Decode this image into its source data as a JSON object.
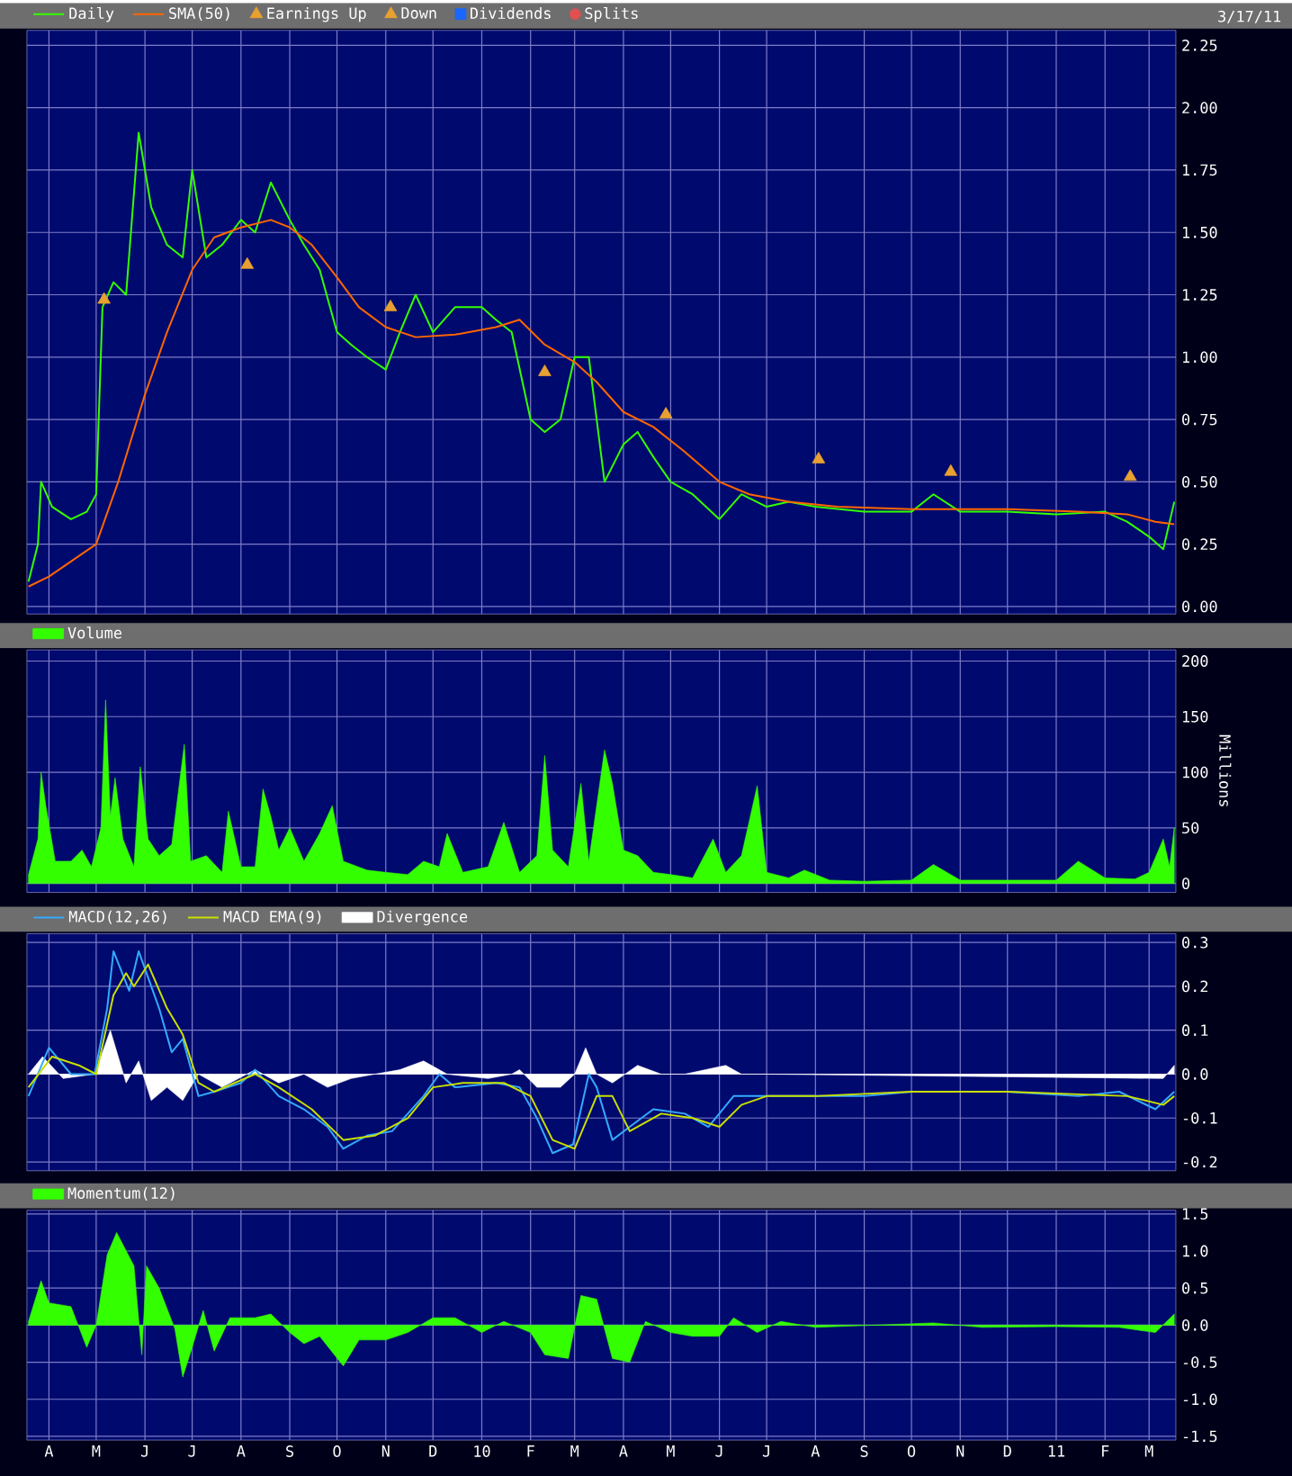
{
  "chart_data": [
    {
      "type": "line",
      "annotations": [
        "3/17/11"
      ],
      "legend": "top left",
      "grid": true,
      "tick_labels": "y",
      "xlim": [
        "2009-03-18",
        "2011-03-18"
      ],
      "xticks": [
        {
          "value": "2009-04-01",
          "label": null
        },
        {
          "value": "2009-05-01",
          "label": null
        },
        {
          "value": "2009-06-01",
          "label": null
        },
        {
          "value": "2009-07-01",
          "label": null
        },
        {
          "value": "2009-08-01",
          "label": null
        },
        {
          "value": "2009-09-01",
          "label": null
        },
        {
          "value": "2009-10-01",
          "label": null
        },
        {
          "value": "2009-11-01",
          "label": null
        },
        {
          "value": "2009-12-01",
          "label": null
        },
        {
          "value": "2010-01-01",
          "label": null
        },
        {
          "value": "2010-02-01",
          "label": null
        },
        {
          "value": "2010-03-01",
          "label": null
        },
        {
          "value": "2010-04-01",
          "label": null
        },
        {
          "value": "2010-05-01",
          "label": null
        },
        {
          "value": "2010-06-01",
          "label": null
        },
        {
          "value": "2010-07-01",
          "label": null
        },
        {
          "value": "2010-08-01",
          "label": null
        },
        {
          "value": "2010-09-01",
          "label": null
        },
        {
          "value": "2010-10-01",
          "label": null
        },
        {
          "value": "2010-11-01",
          "label": null
        },
        {
          "value": "2010-12-01",
          "label": null
        },
        {
          "value": "2011-01-01",
          "label": null
        },
        {
          "value": "2011-02-01",
          "label": null
        },
        {
          "value": "2011-03-01",
          "label": null
        }
      ],
      "ylim": [
        -0.03,
        2.31
      ],
      "yticks": [
        {
          "value": 0,
          "label": "0.00"
        },
        0.25,
        {
          "value": 0.5,
          "label": "0.50"
        },
        0.75,
        {
          "value": 1,
          "label": "1.00"
        },
        1.25,
        {
          "value": 1.5,
          "label": "1.50"
        },
        1.75,
        {
          "value": 2,
          "label": "2.00"
        },
        2.25
      ],
      "series": [
        {
          "name": "Daily",
          "color": "#33ff00",
          "x": [
            "2009-03-19",
            "2009-03-25",
            "2009-03-27",
            "2009-04-03",
            "2009-04-15",
            "2009-04-25",
            "2009-05-01",
            "2009-05-05",
            "2009-05-12",
            "2009-05-20",
            "2009-05-28",
            "2009-06-05",
            "2009-06-15",
            "2009-06-25",
            "2009-07-01",
            "2009-07-10",
            "2009-07-20",
            "2009-08-01",
            "2009-08-10",
            "2009-08-20",
            "2009-09-01",
            "2009-09-10",
            "2009-09-20",
            "2009-10-01",
            "2009-10-10",
            "2009-10-20",
            "2009-11-01",
            "2009-11-10",
            "2009-11-20",
            "2009-12-01",
            "2009-12-15",
            "2010-01-01",
            "2010-01-10",
            "2010-01-20",
            "2010-02-01",
            "2010-02-10",
            "2010-02-20",
            "2010-03-01",
            "2010-03-10",
            "2010-03-20",
            "2010-04-01",
            "2010-04-10",
            "2010-04-20",
            "2010-05-01",
            "2010-05-15",
            "2010-06-01",
            "2010-06-15",
            "2010-07-01",
            "2010-07-15",
            "2010-08-01",
            "2010-09-01",
            "2010-10-01",
            "2010-10-15",
            "2010-11-01",
            "2010-12-01",
            "2011-01-01",
            "2011-02-01",
            "2011-02-15",
            "2011-03-01",
            "2011-03-10",
            "2011-03-17"
          ],
          "values": [
            0.1,
            0.25,
            0.5,
            0.4,
            0.35,
            0.38,
            0.45,
            1.2,
            1.3,
            1.25,
            1.9,
            1.6,
            1.45,
            1.4,
            1.75,
            1.4,
            1.45,
            1.55,
            1.5,
            1.7,
            1.55,
            1.45,
            1.35,
            1.1,
            1.05,
            1.0,
            0.95,
            1.1,
            1.25,
            1.1,
            1.2,
            1.2,
            1.15,
            1.1,
            0.75,
            0.7,
            0.75,
            1.0,
            1.0,
            0.5,
            0.65,
            0.7,
            0.6,
            0.5,
            0.45,
            0.35,
            0.45,
            0.4,
            0.42,
            0.4,
            0.38,
            0.38,
            0.45,
            0.38,
            0.38,
            0.37,
            0.38,
            0.34,
            0.28,
            0.23,
            0.42
          ]
        },
        {
          "name": "SMA(50)",
          "color": "#ff6600",
          "x": [
            "2009-03-19",
            "2009-04-01",
            "2009-05-01",
            "2009-05-15",
            "2009-06-01",
            "2009-06-15",
            "2009-07-01",
            "2009-07-15",
            "2009-08-01",
            "2009-08-20",
            "2009-09-01",
            "2009-09-15",
            "2009-10-01",
            "2009-10-15",
            "2009-11-01",
            "2009-11-20",
            "2009-12-15",
            "2010-01-10",
            "2010-01-25",
            "2010-02-10",
            "2010-03-01",
            "2010-03-15",
            "2010-04-01",
            "2010-04-20",
            "2010-05-10",
            "2010-06-01",
            "2010-06-20",
            "2010-07-15",
            "2010-08-15",
            "2010-10-01",
            "2010-12-01",
            "2011-01-15",
            "2011-02-15",
            "2011-03-05",
            "2011-03-17"
          ],
          "values": [
            0.08,
            0.12,
            0.25,
            0.5,
            0.85,
            1.1,
            1.35,
            1.48,
            1.52,
            1.55,
            1.52,
            1.45,
            1.32,
            1.2,
            1.12,
            1.08,
            1.09,
            1.12,
            1.15,
            1.05,
            0.98,
            0.9,
            0.78,
            0.72,
            0.62,
            0.5,
            0.45,
            0.42,
            0.4,
            0.39,
            0.39,
            0.38,
            0.37,
            0.34,
            0.33
          ]
        },
        {
          "name": "Earnings Up",
          "type": "scatter",
          "marker": "triangle",
          "color": "#e8a030",
          "x": [
            "2009-05-06",
            "2009-08-05",
            "2009-11-04",
            "2010-02-10",
            "2010-10-26",
            "2011-02-17"
          ],
          "values": [
            1.23,
            1.37,
            1.2,
            0.94,
            0.54,
            0.52
          ]
        },
        {
          "name": "Down",
          "type": "scatter",
          "marker": "triangle",
          "color": "#e8a030",
          "x": [
            "2010-04-28",
            "2010-08-03"
          ],
          "values": [
            0.77,
            0.59
          ]
        },
        {
          "name": "Dividends",
          "type": "scatter",
          "marker": "square",
          "color": "#1a66ff"
        },
        {
          "name": "Splits",
          "type": "scatter",
          "marker": "circle",
          "color": "#e05050"
        }
      ]
    },
    {
      "type": "area",
      "ylabel": "Millions",
      "legend": "top left",
      "grid": true,
      "tick_labels": "y",
      "xlim": [
        "2009-03-18",
        "2011-03-18"
      ],
      "xticks": [
        {
          "value": "2009-04-01",
          "label": null
        },
        {
          "value": "2009-05-01",
          "label": null
        },
        {
          "value": "2009-06-01",
          "label": null
        },
        {
          "value": "2009-07-01",
          "label": null
        },
        {
          "value": "2009-08-01",
          "label": null
        },
        {
          "value": "2009-09-01",
          "label": null
        },
        {
          "value": "2009-10-01",
          "label": null
        },
        {
          "value": "2009-11-01",
          "label": null
        },
        {
          "value": "2009-12-01",
          "label": null
        },
        {
          "value": "2010-01-01",
          "label": null
        },
        {
          "value": "2010-02-01",
          "label": null
        },
        {
          "value": "2010-03-01",
          "label": null
        },
        {
          "value": "2010-04-01",
          "label": null
        },
        {
          "value": "2010-05-01",
          "label": null
        },
        {
          "value": "2010-06-01",
          "label": null
        },
        {
          "value": "2010-07-01",
          "label": null
        },
        {
          "value": "2010-08-01",
          "label": null
        },
        {
          "value": "2010-09-01",
          "label": null
        },
        {
          "value": "2010-10-01",
          "label": null
        },
        {
          "value": "2010-11-01",
          "label": null
        },
        {
          "value": "2010-12-01",
          "label": null
        },
        {
          "value": "2011-01-01",
          "label": null
        },
        {
          "value": "2011-02-01",
          "label": null
        },
        {
          "value": "2011-03-01",
          "label": null
        }
      ],
      "ylim": [
        -8,
        210
      ],
      "yticks": [
        0,
        50,
        100,
        150,
        200
      ],
      "series": [
        {
          "name": "Volume",
          "color": "#33ff00",
          "x": [
            "2009-03-19",
            "2009-03-25",
            "2009-03-27",
            "2009-03-30",
            "2009-04-05",
            "2009-04-15",
            "2009-04-22",
            "2009-04-28",
            "2009-05-04",
            "2009-05-07",
            "2009-05-10",
            "2009-05-13",
            "2009-05-18",
            "2009-05-25",
            "2009-05-29",
            "2009-06-03",
            "2009-06-10",
            "2009-06-18",
            "2009-06-26",
            "2009-06-30",
            "2009-07-10",
            "2009-07-20",
            "2009-07-24",
            "2009-08-01",
            "2009-08-10",
            "2009-08-15",
            "2009-08-20",
            "2009-08-25",
            "2009-09-01",
            "2009-09-10",
            "2009-09-20",
            "2009-09-28",
            "2009-10-05",
            "2009-10-20",
            "2009-11-01",
            "2009-11-15",
            "2009-11-25",
            "2009-12-05",
            "2009-12-10",
            "2009-12-20",
            "2010-01-05",
            "2010-01-15",
            "2010-01-25",
            "2010-02-05",
            "2010-02-10",
            "2010-02-15",
            "2010-02-25",
            "2010-03-05",
            "2010-03-10",
            "2010-03-20",
            "2010-03-25",
            "2010-04-01",
            "2010-04-10",
            "2010-04-20",
            "2010-05-01",
            "2010-05-15",
            "2010-05-28",
            "2010-06-05",
            "2010-06-15",
            "2010-06-25",
            "2010-07-01",
            "2010-07-15",
            "2010-07-25",
            "2010-08-10",
            "2010-09-01",
            "2010-10-01",
            "2010-10-15",
            "2010-11-01",
            "2010-12-01",
            "2011-01-01",
            "2011-01-15",
            "2011-02-01",
            "2011-02-20",
            "2011-03-01",
            "2011-03-10",
            "2011-03-14",
            "2011-03-17"
          ],
          "values": [
            8,
            40,
            100,
            70,
            20,
            20,
            30,
            15,
            50,
            165,
            60,
            95,
            40,
            15,
            105,
            40,
            25,
            35,
            125,
            20,
            25,
            10,
            65,
            15,
            15,
            85,
            60,
            30,
            50,
            20,
            45,
            70,
            20,
            12,
            10,
            8,
            20,
            15,
            45,
            10,
            15,
            55,
            10,
            25,
            115,
            30,
            15,
            90,
            20,
            120,
            90,
            30,
            25,
            10,
            8,
            5,
            40,
            10,
            25,
            88,
            10,
            5,
            12,
            3,
            2,
            3,
            17,
            3,
            3,
            3,
            20,
            5,
            4,
            10,
            40,
            15,
            50
          ]
        }
      ]
    },
    {
      "type": "line",
      "legend": "top left",
      "grid": true,
      "tick_labels": "y",
      "xlim": [
        "2009-03-18",
        "2011-03-18"
      ],
      "xticks": [
        {
          "value": "2009-04-01",
          "label": null
        },
        {
          "value": "2009-05-01",
          "label": null
        },
        {
          "value": "2009-06-01",
          "label": null
        },
        {
          "value": "2009-07-01",
          "label": null
        },
        {
          "value": "2009-08-01",
          "label": null
        },
        {
          "value": "2009-09-01",
          "label": null
        },
        {
          "value": "2009-10-01",
          "label": null
        },
        {
          "value": "2009-11-01",
          "label": null
        },
        {
          "value": "2009-12-01",
          "label": null
        },
        {
          "value": "2010-01-01",
          "label": null
        },
        {
          "value": "2010-02-01",
          "label": null
        },
        {
          "value": "2010-03-01",
          "label": null
        },
        {
          "value": "2010-04-01",
          "label": null
        },
        {
          "value": "2010-05-01",
          "label": null
        },
        {
          "value": "2010-06-01",
          "label": null
        },
        {
          "value": "2010-07-01",
          "label": null
        },
        {
          "value": "2010-08-01",
          "label": null
        },
        {
          "value": "2010-09-01",
          "label": null
        },
        {
          "value": "2010-10-01",
          "label": null
        },
        {
          "value": "2010-11-01",
          "label": null
        },
        {
          "value": "2010-12-01",
          "label": null
        },
        {
          "value": "2011-01-01",
          "label": null
        },
        {
          "value": "2011-02-01",
          "label": null
        },
        {
          "value": "2011-03-01",
          "label": null
        }
      ],
      "ylim": [
        -0.22,
        0.32
      ],
      "yticks": [
        -0.2,
        -0.1,
        {
          "value": 0,
          "label": "0.0"
        },
        0.1,
        0.2,
        0.3
      ],
      "series": [
        {
          "name": "MACD(12,26)",
          "color": "#33aaff",
          "x": [
            "2009-03-19",
            "2009-04-01",
            "2009-04-15",
            "2009-04-30",
            "2009-05-08",
            "2009-05-12",
            "2009-05-22",
            "2009-05-28",
            "2009-06-10",
            "2009-06-18",
            "2009-06-25",
            "2009-07-05",
            "2009-07-15",
            "2009-08-01",
            "2009-08-10",
            "2009-08-25",
            "2009-09-10",
            "2009-09-25",
            "2009-10-05",
            "2009-10-20",
            "2009-11-05",
            "2009-11-25",
            "2009-12-05",
            "2009-12-15",
            "2010-01-10",
            "2010-01-25",
            "2010-02-05",
            "2010-02-15",
            "2010-02-28",
            "2010-03-10",
            "2010-03-15",
            "2010-03-25",
            "2010-04-05",
            "2010-04-20",
            "2010-05-10",
            "2010-05-25",
            "2010-06-10",
            "2010-07-01",
            "2010-08-01",
            "2010-09-01",
            "2010-10-01",
            "2010-11-01",
            "2010-12-01",
            "2011-01-15",
            "2011-02-10",
            "2011-03-05",
            "2011-03-17"
          ],
          "values": [
            -0.05,
            0.06,
            0.0,
            0.0,
            0.15,
            0.28,
            0.19,
            0.28,
            0.15,
            0.05,
            0.08,
            -0.05,
            -0.04,
            -0.02,
            0.01,
            -0.05,
            -0.08,
            -0.12,
            -0.17,
            -0.14,
            -0.13,
            -0.05,
            0.0,
            -0.03,
            -0.02,
            -0.03,
            -0.1,
            -0.18,
            -0.16,
            0.0,
            -0.03,
            -0.15,
            -0.12,
            -0.08,
            -0.09,
            -0.12,
            -0.05,
            -0.05,
            -0.05,
            -0.05,
            -0.04,
            -0.04,
            -0.04,
            -0.05,
            -0.04,
            -0.08,
            -0.04
          ]
        },
        {
          "name": "MACD EMA(9)",
          "color": "#c8e000",
          "x": [
            "2009-03-19",
            "2009-04-03",
            "2009-04-20",
            "2009-05-01",
            "2009-05-12",
            "2009-05-20",
            "2009-05-25",
            "2009-06-03",
            "2009-06-15",
            "2009-06-25",
            "2009-07-05",
            "2009-07-15",
            "2009-08-10",
            "2009-08-25",
            "2009-09-15",
            "2009-10-05",
            "2009-10-25",
            "2009-11-15",
            "2009-12-01",
            "2009-12-20",
            "2010-01-15",
            "2010-02-01",
            "2010-02-15",
            "2010-03-01",
            "2010-03-15",
            "2010-03-25",
            "2010-04-05",
            "2010-04-25",
            "2010-05-15",
            "2010-06-01",
            "2010-06-15",
            "2010-07-01",
            "2010-08-01",
            "2010-10-01",
            "2010-12-01",
            "2011-02-15",
            "2011-03-10",
            "2011-03-17"
          ],
          "values": [
            -0.03,
            0.04,
            0.02,
            0.0,
            0.18,
            0.23,
            0.2,
            0.25,
            0.15,
            0.09,
            -0.02,
            -0.04,
            0.0,
            -0.03,
            -0.08,
            -0.15,
            -0.14,
            -0.1,
            -0.03,
            -0.02,
            -0.02,
            -0.05,
            -0.15,
            -0.17,
            -0.05,
            -0.05,
            -0.13,
            -0.09,
            -0.1,
            -0.12,
            -0.07,
            -0.05,
            -0.05,
            -0.04,
            -0.04,
            -0.05,
            -0.07,
            -0.05
          ]
        },
        {
          "name": "Divergence",
          "type": "area",
          "color": "#ffffff",
          "x": [
            "2009-03-19",
            "2009-03-28",
            "2009-04-10",
            "2009-04-30",
            "2009-05-10",
            "2009-05-20",
            "2009-05-28",
            "2009-06-05",
            "2009-06-15",
            "2009-06-25",
            "2009-07-05",
            "2009-07-20",
            "2009-08-10",
            "2009-08-25",
            "2009-09-10",
            "2009-09-25",
            "2009-10-10",
            "2009-10-25",
            "2009-11-10",
            "2009-11-25",
            "2009-12-10",
            "2010-01-05",
            "2010-01-20",
            "2010-01-25",
            "2010-02-05",
            "2010-02-20",
            "2010-03-01",
            "2010-03-08",
            "2010-03-15",
            "2010-03-25",
            "2010-04-10",
            "2010-04-25",
            "2010-05-10",
            "2010-06-05",
            "2010-06-15",
            "2010-07-01",
            "2011-03-10",
            "2011-03-17"
          ],
          "values": [
            0.0,
            0.04,
            -0.01,
            0.0,
            0.1,
            -0.02,
            0.03,
            -0.06,
            -0.03,
            -0.06,
            0.0,
            -0.03,
            0.01,
            -0.02,
            0.0,
            -0.03,
            -0.01,
            0.0,
            0.01,
            0.03,
            0.0,
            -0.01,
            0.0,
            0.01,
            -0.03,
            -0.03,
            0.0,
            0.06,
            0.0,
            -0.02,
            0.02,
            0.0,
            0.0,
            0.02,
            0.0,
            0.0,
            -0.01,
            0.02
          ]
        }
      ]
    },
    {
      "type": "area",
      "legend": "top left",
      "grid": true,
      "xlim": [
        "2009-03-18",
        "2011-03-18"
      ],
      "xticks": [
        {
          "value": "2009-04-01",
          "label": "A"
        },
        {
          "value": "2009-05-01",
          "label": "M"
        },
        {
          "value": "2009-06-01",
          "label": "J"
        },
        {
          "value": "2009-07-01",
          "label": "J"
        },
        {
          "value": "2009-08-01",
          "label": "A"
        },
        {
          "value": "2009-09-01",
          "label": "S"
        },
        {
          "value": "2009-10-01",
          "label": "O"
        },
        {
          "value": "2009-11-01",
          "label": "N"
        },
        {
          "value": "2009-12-01",
          "label": "D"
        },
        {
          "value": "2010-01-01",
          "label": "10"
        },
        {
          "value": "2010-02-01",
          "label": "F"
        },
        {
          "value": "2010-03-01",
          "label": "M"
        },
        {
          "value": "2010-04-01",
          "label": "A"
        },
        {
          "value": "2010-05-01",
          "label": "M"
        },
        {
          "value": "2010-06-01",
          "label": "J"
        },
        {
          "value": "2010-07-01",
          "label": "J"
        },
        {
          "value": "2010-08-01",
          "label": "A"
        },
        {
          "value": "2010-09-01",
          "label": "S"
        },
        {
          "value": "2010-10-01",
          "label": "O"
        },
        {
          "value": "2010-11-01",
          "label": "N"
        },
        {
          "value": "2010-12-01",
          "label": "D"
        },
        {
          "value": "2011-01-01",
          "label": "11"
        },
        {
          "value": "2011-02-01",
          "label": "F"
        },
        {
          "value": "2011-03-01",
          "label": "M"
        }
      ],
      "ylim": [
        -1.55,
        1.55
      ],
      "yticks": [
        -1.5,
        {
          "value": -1,
          "label": "-1.0"
        },
        -0.5,
        {
          "value": 0,
          "label": "0.0"
        },
        0.5,
        {
          "value": 1,
          "label": "1.0"
        },
        1.5
      ],
      "series": [
        {
          "name": "Momentum(12)",
          "color": "#33ff00",
          "x": [
            "2009-03-19",
            "2009-03-27",
            "2009-04-01",
            "2009-04-15",
            "2009-04-25",
            "2009-05-01",
            "2009-05-08",
            "2009-05-14",
            "2009-05-25",
            "2009-05-30",
            "2009-06-02",
            "2009-06-10",
            "2009-06-20",
            "2009-06-25",
            "2009-07-01",
            "2009-07-08",
            "2009-07-15",
            "2009-07-25",
            "2009-08-10",
            "2009-08-20",
            "2009-09-01",
            "2009-09-10",
            "2009-09-20",
            "2009-10-05",
            "2009-10-15",
            "2009-11-01",
            "2009-11-15",
            "2009-12-01",
            "2009-12-15",
            "2010-01-01",
            "2010-01-15",
            "2010-02-01",
            "2010-02-10",
            "2010-02-25",
            "2010-03-05",
            "2010-03-15",
            "2010-03-25",
            "2010-04-05",
            "2010-04-15",
            "2010-05-01",
            "2010-05-15",
            "2010-06-01",
            "2010-06-10",
            "2010-06-25",
            "2010-07-10",
            "2010-08-01",
            "2010-10-15",
            "2010-11-15",
            "2011-01-01",
            "2011-02-10",
            "2011-03-05",
            "2011-03-17"
          ],
          "values": [
            0.05,
            0.6,
            0.3,
            0.25,
            -0.3,
            0.0,
            0.95,
            1.25,
            0.8,
            -0.4,
            0.8,
            0.5,
            -0.05,
            -0.7,
            -0.3,
            0.2,
            -0.35,
            0.1,
            0.1,
            0.15,
            -0.1,
            -0.25,
            -0.15,
            -0.55,
            -0.2,
            -0.2,
            -0.1,
            0.1,
            0.1,
            -0.1,
            0.05,
            -0.1,
            -0.4,
            -0.45,
            0.4,
            0.35,
            -0.45,
            -0.5,
            0.05,
            -0.1,
            -0.15,
            -0.15,
            0.1,
            -0.1,
            0.05,
            -0.03,
            0.03,
            -0.03,
            -0.02,
            -0.03,
            -0.1,
            0.15
          ]
        }
      ]
    }
  ]
}
